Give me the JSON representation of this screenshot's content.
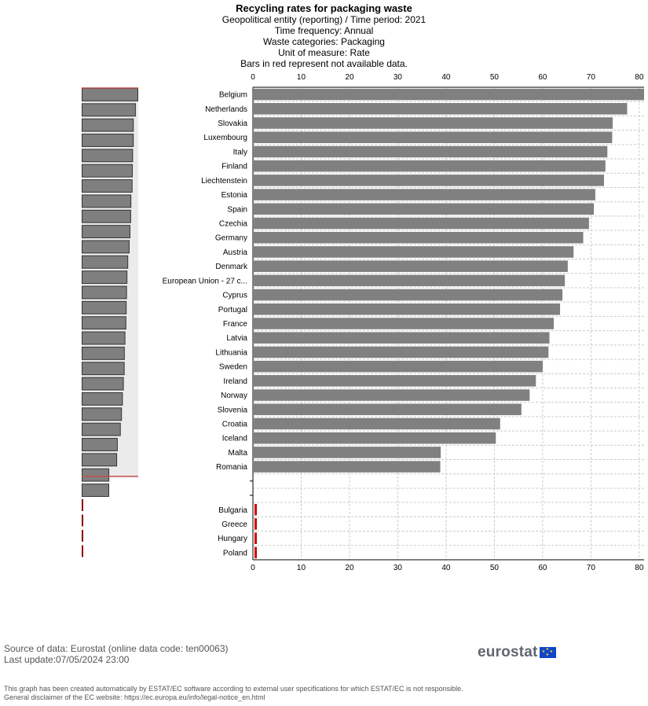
{
  "titles": {
    "main": "Recycling rates for packaging waste",
    "lines": [
      "Geopolitical entity (reporting) / Time period: 2021",
      "Time frequency: Annual",
      "Waste categories: Packaging",
      "Unit of measure: Rate",
      "Bars in red represent not available data."
    ]
  },
  "chart_data": {
    "type": "bar",
    "orientation": "horizontal",
    "title": "Recycling rates for packaging waste",
    "xlabel": "",
    "ylabel": "",
    "xlim": [
      0,
      81
    ],
    "ticks": [
      0,
      10,
      20,
      30,
      40,
      50,
      60,
      70,
      80
    ],
    "grid": true,
    "categories": [
      "Belgium",
      "Netherlands",
      "Slovakia",
      "Luxembourg",
      "Italy",
      "Finland",
      "Liechtenstein",
      "Estonia",
      "Spain",
      "Czechia",
      "Germany",
      "Austria",
      "Denmark",
      "European Union - 27 c...",
      "Cyprus",
      "Portugal",
      "France",
      "Latvia",
      "Lithuania",
      "Sweden",
      "Ireland",
      "Norway",
      "Slovenia",
      "Croatia",
      "Iceland",
      "Malta",
      "Romania",
      "",
      "",
      "Bulgaria",
      "Greece",
      "Hungary",
      "Poland"
    ],
    "values": [
      81.0,
      77.5,
      74.5,
      74.4,
      73.4,
      73.0,
      72.7,
      70.9,
      70.6,
      69.6,
      68.4,
      66.4,
      65.2,
      64.6,
      64.1,
      63.6,
      62.3,
      61.4,
      61.2,
      60.0,
      58.6,
      57.3,
      55.6,
      51.2,
      50.3,
      38.9,
      38.8,
      null,
      null,
      null,
      null,
      null,
      null
    ],
    "not_available": [
      "Bulgaria",
      "Greece",
      "Hungary",
      "Poland"
    ],
    "colors": {
      "bar": "#808080",
      "not_available": "#d40000",
      "grid": "#cccccc",
      "overview_bg": "#ebebeb",
      "overview_bar": "#7f7f7f",
      "overview_line": "#c0504d"
    }
  },
  "footer": {
    "source": "Source of data: Eurostat (online data code: ten00063)",
    "last_update": "Last update:07/05/2024 23:00",
    "disclaimer_1": "This graph has been created automatically by ESTAT/EC software according to external user specifications for which ESTAT/EC is not responsible.",
    "disclaimer_2": "General disclaimer of the EC website: https://ec.europa.eu/info/legal-notice_en.html",
    "logo_text": "eurostat",
    "logo_icon": "eu-flag-icon"
  }
}
